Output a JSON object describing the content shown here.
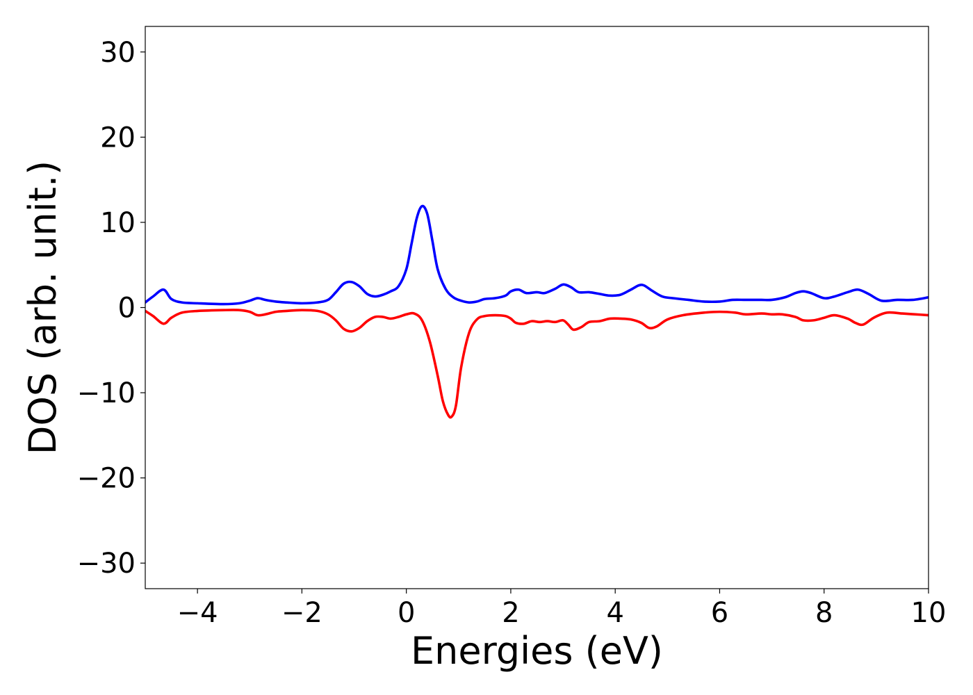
{
  "chart_data": {
    "type": "line",
    "title": "",
    "xlabel": "Energies (eV)",
    "ylabel": "DOS (arb. unit.)",
    "xlim": [
      -5,
      10
    ],
    "ylim": [
      -33,
      33
    ],
    "xticks": [
      -4,
      -2,
      0,
      2,
      4,
      6,
      8,
      10
    ],
    "yticks": [
      -30,
      -20,
      -10,
      0,
      10,
      20,
      30
    ],
    "xtick_labels": [
      "−4",
      "−2",
      "0",
      "2",
      "4",
      "6",
      "8",
      "10"
    ],
    "ytick_labels": [
      "−30",
      "−20",
      "−10",
      "0",
      "10",
      "20",
      "30"
    ],
    "grid": false,
    "legend": "none",
    "series": [
      {
        "color": "#0000ff",
        "x": [
          -5.0,
          -4.85,
          -4.65,
          -4.5,
          -4.3,
          -4.0,
          -3.5,
          -3.2,
          -3.0,
          -2.85,
          -2.7,
          -2.5,
          -2.3,
          -2.0,
          -1.7,
          -1.5,
          -1.35,
          -1.2,
          -1.05,
          -0.9,
          -0.75,
          -0.6,
          -0.45,
          -0.3,
          -0.15,
          0.0,
          0.1,
          0.2,
          0.3,
          0.4,
          0.5,
          0.6,
          0.75,
          0.9,
          1.05,
          1.2,
          1.35,
          1.5,
          1.7,
          1.9,
          2.0,
          2.15,
          2.3,
          2.5,
          2.65,
          2.85,
          3.0,
          3.15,
          3.3,
          3.5,
          3.7,
          3.9,
          4.1,
          4.3,
          4.45,
          4.55,
          4.7,
          4.9,
          5.1,
          5.4,
          5.7,
          6.0,
          6.25,
          6.5,
          6.8,
          7.0,
          7.25,
          7.45,
          7.6,
          7.75,
          8.0,
          8.2,
          8.45,
          8.65,
          8.85,
          9.1,
          9.4,
          9.7,
          10.0
        ],
        "values": [
          0.6,
          1.3,
          2.1,
          1.0,
          0.6,
          0.5,
          0.4,
          0.5,
          0.8,
          1.1,
          0.9,
          0.7,
          0.6,
          0.5,
          0.6,
          0.9,
          1.8,
          2.8,
          3.0,
          2.5,
          1.6,
          1.3,
          1.5,
          1.9,
          2.5,
          4.5,
          7.5,
          10.5,
          11.9,
          11.0,
          7.8,
          4.5,
          2.2,
          1.2,
          0.8,
          0.6,
          0.7,
          1.0,
          1.1,
          1.4,
          1.9,
          2.1,
          1.7,
          1.8,
          1.7,
          2.2,
          2.7,
          2.4,
          1.8,
          1.8,
          1.6,
          1.4,
          1.5,
          2.1,
          2.6,
          2.6,
          2.0,
          1.3,
          1.1,
          0.9,
          0.7,
          0.7,
          0.9,
          0.9,
          0.9,
          0.9,
          1.2,
          1.7,
          1.9,
          1.7,
          1.1,
          1.3,
          1.8,
          2.1,
          1.6,
          0.8,
          0.9,
          0.9,
          1.2
        ]
      },
      {
        "color": "#ff0000",
        "x": [
          -5.0,
          -4.85,
          -4.65,
          -4.5,
          -4.3,
          -4.0,
          -3.5,
          -3.2,
          -3.0,
          -2.85,
          -2.7,
          -2.5,
          -2.3,
          -2.0,
          -1.7,
          -1.5,
          -1.35,
          -1.2,
          -1.05,
          -0.9,
          -0.75,
          -0.6,
          -0.45,
          -0.3,
          -0.15,
          0.0,
          0.15,
          0.3,
          0.45,
          0.6,
          0.7,
          0.8,
          0.87,
          0.95,
          1.05,
          1.2,
          1.35,
          1.5,
          1.7,
          1.9,
          2.0,
          2.1,
          2.25,
          2.4,
          2.55,
          2.7,
          2.85,
          3.0,
          3.1,
          3.2,
          3.35,
          3.5,
          3.7,
          3.9,
          4.1,
          4.3,
          4.5,
          4.65,
          4.8,
          5.0,
          5.3,
          5.7,
          6.0,
          6.3,
          6.5,
          6.8,
          7.0,
          7.2,
          7.45,
          7.6,
          7.8,
          8.0,
          8.2,
          8.45,
          8.6,
          8.75,
          8.95,
          9.2,
          9.5,
          9.75,
          10.0
        ],
        "values": [
          -0.4,
          -1.0,
          -1.9,
          -1.2,
          -0.6,
          -0.4,
          -0.3,
          -0.3,
          -0.5,
          -0.9,
          -0.8,
          -0.5,
          -0.4,
          -0.3,
          -0.4,
          -0.8,
          -1.5,
          -2.5,
          -2.8,
          -2.4,
          -1.6,
          -1.1,
          -1.1,
          -1.3,
          -1.1,
          -0.8,
          -0.7,
          -1.5,
          -4.0,
          -8.0,
          -11.0,
          -12.6,
          -12.8,
          -11.5,
          -7.0,
          -3.0,
          -1.4,
          -1.0,
          -0.9,
          -1.0,
          -1.3,
          -1.8,
          -1.9,
          -1.6,
          -1.7,
          -1.6,
          -1.7,
          -1.5,
          -2.0,
          -2.6,
          -2.3,
          -1.7,
          -1.6,
          -1.3,
          -1.3,
          -1.4,
          -1.8,
          -2.4,
          -2.2,
          -1.4,
          -0.9,
          -0.6,
          -0.5,
          -0.6,
          -0.8,
          -0.7,
          -0.8,
          -0.8,
          -1.1,
          -1.5,
          -1.5,
          -1.2,
          -0.9,
          -1.3,
          -1.8,
          -2.0,
          -1.2,
          -0.6,
          -0.7,
          -0.8,
          -0.9
        ]
      }
    ]
  }
}
